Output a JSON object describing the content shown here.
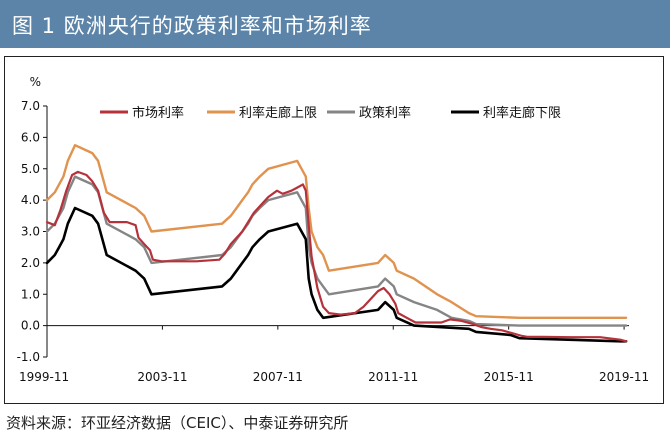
{
  "figure": {
    "title": "图 1  欧洲央行的政策利率和市场利率",
    "source": "资料来源：环亚经济数据（CEIC）、中泰证券研究所"
  },
  "chart_data": {
    "type": "line",
    "title": "",
    "ylabel": "%",
    "xlabel": "",
    "x_range": [
      1999.83,
      2020.0
    ],
    "ylim": [
      -1.0,
      7.0
    ],
    "y_ticks": [
      "-1.0",
      "0.0",
      "1.0",
      "2.0",
      "3.0",
      "4.0",
      "5.0",
      "6.0",
      "7.0"
    ],
    "x_tick_labels": [
      {
        "x": 1999.83,
        "label": "1999-11"
      },
      {
        "x": 2003.83,
        "label": "2003-11"
      },
      {
        "x": 2007.83,
        "label": "2007-11"
      },
      {
        "x": 2011.83,
        "label": "2011-11"
      },
      {
        "x": 2015.83,
        "label": "2015-11"
      },
      {
        "x": 2019.83,
        "label": "2019-11"
      }
    ],
    "grid": false,
    "legend_position": "top",
    "series": [
      {
        "name": "市场利率",
        "color": "#b5323a",
        "width": 2.2,
        "points": [
          [
            1999.83,
            3.3
          ],
          [
            2000.1,
            3.2
          ],
          [
            2000.3,
            3.7
          ],
          [
            2000.5,
            4.3
          ],
          [
            2000.7,
            4.8
          ],
          [
            2000.9,
            4.9
          ],
          [
            2001.2,
            4.8
          ],
          [
            2001.4,
            4.6
          ],
          [
            2001.6,
            4.3
          ],
          [
            2001.8,
            3.6
          ],
          [
            2002.0,
            3.3
          ],
          [
            2002.3,
            3.3
          ],
          [
            2002.6,
            3.3
          ],
          [
            2002.9,
            3.2
          ],
          [
            2003.0,
            2.8
          ],
          [
            2003.2,
            2.6
          ],
          [
            2003.4,
            2.4
          ],
          [
            2003.5,
            2.1
          ],
          [
            2003.8,
            2.05
          ],
          [
            2004.5,
            2.05
          ],
          [
            2005.0,
            2.05
          ],
          [
            2005.8,
            2.1
          ],
          [
            2006.0,
            2.3
          ],
          [
            2006.2,
            2.6
          ],
          [
            2006.4,
            2.8
          ],
          [
            2006.6,
            3.0
          ],
          [
            2006.8,
            3.3
          ],
          [
            2007.0,
            3.6
          ],
          [
            2007.2,
            3.8
          ],
          [
            2007.5,
            4.1
          ],
          [
            2007.8,
            4.3
          ],
          [
            2008.0,
            4.2
          ],
          [
            2008.3,
            4.3
          ],
          [
            2008.5,
            4.4
          ],
          [
            2008.7,
            4.5
          ],
          [
            2008.8,
            4.3
          ],
          [
            2008.9,
            3.2
          ],
          [
            2009.0,
            2.2
          ],
          [
            2009.2,
            1.2
          ],
          [
            2009.4,
            0.6
          ],
          [
            2009.6,
            0.4
          ],
          [
            2010.0,
            0.35
          ],
          [
            2010.5,
            0.4
          ],
          [
            2010.8,
            0.6
          ],
          [
            2011.0,
            0.8
          ],
          [
            2011.3,
            1.1
          ],
          [
            2011.5,
            1.2
          ],
          [
            2011.7,
            1.0
          ],
          [
            2011.9,
            0.7
          ],
          [
            2012.0,
            0.4
          ],
          [
            2012.3,
            0.25
          ],
          [
            2012.6,
            0.1
          ],
          [
            2013.0,
            0.1
          ],
          [
            2013.5,
            0.1
          ],
          [
            2013.8,
            0.2
          ],
          [
            2014.2,
            0.15
          ],
          [
            2014.6,
            0.05
          ],
          [
            2014.9,
            -0.05
          ],
          [
            2015.2,
            -0.1
          ],
          [
            2015.6,
            -0.15
          ],
          [
            2016.0,
            -0.25
          ],
          [
            2016.3,
            -0.33
          ],
          [
            2016.5,
            -0.36
          ],
          [
            2017.0,
            -0.36
          ],
          [
            2018.0,
            -0.37
          ],
          [
            2019.0,
            -0.37
          ],
          [
            2019.7,
            -0.45
          ],
          [
            2019.9,
            -0.5
          ]
        ]
      },
      {
        "name": "利率走廊上限",
        "color": "#e0934f",
        "width": 2.4,
        "points": [
          [
            1999.83,
            4.0
          ],
          [
            2000.1,
            4.25
          ],
          [
            2000.25,
            4.5
          ],
          [
            2000.4,
            4.75
          ],
          [
            2000.55,
            5.25
          ],
          [
            2000.8,
            5.75
          ],
          [
            2001.4,
            5.5
          ],
          [
            2001.6,
            5.25
          ],
          [
            2001.75,
            4.75
          ],
          [
            2001.9,
            4.25
          ],
          [
            2002.9,
            3.75
          ],
          [
            2003.2,
            3.5
          ],
          [
            2003.45,
            3.0
          ],
          [
            2005.9,
            3.25
          ],
          [
            2006.2,
            3.5
          ],
          [
            2006.4,
            3.75
          ],
          [
            2006.6,
            4.0
          ],
          [
            2006.8,
            4.25
          ],
          [
            2006.95,
            4.5
          ],
          [
            2007.2,
            4.75
          ],
          [
            2007.5,
            5.0
          ],
          [
            2008.5,
            5.25
          ],
          [
            2008.8,
            4.75
          ],
          [
            2008.9,
            3.75
          ],
          [
            2009.0,
            3.0
          ],
          [
            2009.2,
            2.5
          ],
          [
            2009.4,
            2.25
          ],
          [
            2009.6,
            1.75
          ],
          [
            2011.3,
            2.0
          ],
          [
            2011.55,
            2.25
          ],
          [
            2011.85,
            2.0
          ],
          [
            2011.95,
            1.75
          ],
          [
            2012.55,
            1.5
          ],
          [
            2013.35,
            1.0
          ],
          [
            2013.85,
            0.75
          ],
          [
            2014.45,
            0.4
          ],
          [
            2014.7,
            0.3
          ],
          [
            2016.2,
            0.25
          ],
          [
            2019.9,
            0.25
          ]
        ]
      },
      {
        "name": "政策利率",
        "color": "#858585",
        "width": 2.4,
        "points": [
          [
            1999.83,
            3.0
          ],
          [
            2000.1,
            3.25
          ],
          [
            2000.25,
            3.5
          ],
          [
            2000.4,
            3.75
          ],
          [
            2000.55,
            4.25
          ],
          [
            2000.8,
            4.75
          ],
          [
            2001.4,
            4.5
          ],
          [
            2001.6,
            4.25
          ],
          [
            2001.75,
            3.75
          ],
          [
            2001.9,
            3.25
          ],
          [
            2002.9,
            2.75
          ],
          [
            2003.2,
            2.5
          ],
          [
            2003.45,
            2.0
          ],
          [
            2005.9,
            2.25
          ],
          [
            2006.2,
            2.5
          ],
          [
            2006.4,
            2.75
          ],
          [
            2006.6,
            3.0
          ],
          [
            2006.8,
            3.25
          ],
          [
            2006.95,
            3.5
          ],
          [
            2007.2,
            3.75
          ],
          [
            2007.5,
            4.0
          ],
          [
            2008.5,
            4.25
          ],
          [
            2008.8,
            3.75
          ],
          [
            2008.9,
            2.5
          ],
          [
            2009.0,
            2.0
          ],
          [
            2009.2,
            1.5
          ],
          [
            2009.4,
            1.25
          ],
          [
            2009.6,
            1.0
          ],
          [
            2011.3,
            1.25
          ],
          [
            2011.55,
            1.5
          ],
          [
            2011.85,
            1.25
          ],
          [
            2011.95,
            1.0
          ],
          [
            2012.55,
            0.75
          ],
          [
            2013.35,
            0.5
          ],
          [
            2013.85,
            0.25
          ],
          [
            2014.45,
            0.15
          ],
          [
            2014.7,
            0.05
          ],
          [
            2016.2,
            0.0
          ],
          [
            2019.9,
            0.0
          ]
        ]
      },
      {
        "name": "利率走廊下限",
        "color": "#000000",
        "width": 2.6,
        "points": [
          [
            1999.83,
            2.0
          ],
          [
            2000.1,
            2.25
          ],
          [
            2000.25,
            2.5
          ],
          [
            2000.4,
            2.75
          ],
          [
            2000.55,
            3.25
          ],
          [
            2000.8,
            3.75
          ],
          [
            2001.4,
            3.5
          ],
          [
            2001.6,
            3.25
          ],
          [
            2001.75,
            2.75
          ],
          [
            2001.9,
            2.25
          ],
          [
            2002.9,
            1.75
          ],
          [
            2003.2,
            1.5
          ],
          [
            2003.45,
            1.0
          ],
          [
            2005.9,
            1.25
          ],
          [
            2006.2,
            1.5
          ],
          [
            2006.4,
            1.75
          ],
          [
            2006.6,
            2.0
          ],
          [
            2006.8,
            2.25
          ],
          [
            2006.95,
            2.5
          ],
          [
            2007.2,
            2.75
          ],
          [
            2007.5,
            3.0
          ],
          [
            2008.5,
            3.25
          ],
          [
            2008.8,
            2.75
          ],
          [
            2008.9,
            1.5
          ],
          [
            2009.0,
            1.0
          ],
          [
            2009.2,
            0.5
          ],
          [
            2009.4,
            0.25
          ],
          [
            2011.3,
            0.5
          ],
          [
            2011.55,
            0.75
          ],
          [
            2011.85,
            0.5
          ],
          [
            2011.95,
            0.25
          ],
          [
            2012.55,
            0.0
          ],
          [
            2014.45,
            -0.1
          ],
          [
            2014.7,
            -0.2
          ],
          [
            2015.9,
            -0.3
          ],
          [
            2016.2,
            -0.4
          ],
          [
            2019.7,
            -0.5
          ],
          [
            2019.9,
            -0.5
          ]
        ]
      }
    ]
  }
}
